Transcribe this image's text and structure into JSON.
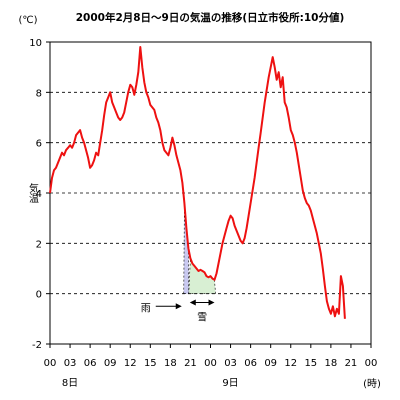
{
  "chart_data": {
    "type": "line",
    "title": "2000年2月8日～9日の気温の推移(日立市役所:10分値)",
    "ylabel": "気温",
    "yunit": "(℃)",
    "xunit": "(時)",
    "ylim": [
      -2,
      10
    ],
    "yticks": [
      "-2",
      "0",
      "2",
      "4",
      "6",
      "8",
      "10"
    ],
    "xticks": [
      "00",
      "03",
      "06",
      "09",
      "12",
      "15",
      "18",
      "21",
      "00",
      "03",
      "06",
      "09",
      "12",
      "15",
      "18",
      "21",
      "00"
    ],
    "day_labels": [
      {
        "label": "8日",
        "hour": 0
      },
      {
        "label": "9日",
        "hour": 24
      }
    ],
    "xlim": [
      0,
      48
    ],
    "grid": "horizontal dashed",
    "line_color": "#ee1111",
    "series": [
      {
        "points": [
          [
            0.0,
            4.0
          ],
          [
            0.3,
            4.6
          ],
          [
            0.6,
            4.9
          ],
          [
            0.9,
            5.0
          ],
          [
            1.2,
            5.2
          ],
          [
            1.5,
            5.4
          ],
          [
            1.8,
            5.6
          ],
          [
            2.1,
            5.5
          ],
          [
            2.4,
            5.7
          ],
          [
            2.7,
            5.8
          ],
          [
            3.0,
            5.9
          ],
          [
            3.3,
            5.8
          ],
          [
            3.6,
            6.0
          ],
          [
            3.9,
            6.3
          ],
          [
            4.2,
            6.4
          ],
          [
            4.5,
            6.5
          ],
          [
            4.8,
            6.2
          ],
          [
            5.1,
            6.0
          ],
          [
            5.4,
            5.7
          ],
          [
            5.7,
            5.4
          ],
          [
            6.0,
            5.0
          ],
          [
            6.3,
            5.1
          ],
          [
            6.6,
            5.3
          ],
          [
            6.9,
            5.6
          ],
          [
            7.2,
            5.5
          ],
          [
            7.5,
            6.0
          ],
          [
            7.8,
            6.5
          ],
          [
            8.1,
            7.1
          ],
          [
            8.4,
            7.6
          ],
          [
            8.7,
            7.8
          ],
          [
            9.0,
            8.0
          ],
          [
            9.3,
            7.6
          ],
          [
            9.6,
            7.4
          ],
          [
            9.9,
            7.2
          ],
          [
            10.2,
            7.0
          ],
          [
            10.5,
            6.9
          ],
          [
            10.8,
            7.0
          ],
          [
            11.1,
            7.2
          ],
          [
            11.4,
            7.6
          ],
          [
            11.7,
            8.0
          ],
          [
            12.0,
            8.3
          ],
          [
            12.3,
            8.2
          ],
          [
            12.6,
            7.9
          ],
          [
            12.9,
            8.3
          ],
          [
            13.2,
            8.8
          ],
          [
            13.5,
            9.8
          ],
          [
            13.8,
            9.0
          ],
          [
            14.1,
            8.4
          ],
          [
            14.4,
            8.0
          ],
          [
            14.7,
            7.8
          ],
          [
            15.0,
            7.5
          ],
          [
            15.3,
            7.4
          ],
          [
            15.6,
            7.3
          ],
          [
            15.9,
            7.0
          ],
          [
            16.2,
            6.8
          ],
          [
            16.5,
            6.5
          ],
          [
            16.8,
            6.0
          ],
          [
            17.1,
            5.7
          ],
          [
            17.4,
            5.6
          ],
          [
            17.7,
            5.5
          ],
          [
            18.0,
            5.8
          ],
          [
            18.3,
            6.2
          ],
          [
            18.6,
            5.9
          ],
          [
            18.9,
            5.5
          ],
          [
            19.2,
            5.2
          ],
          [
            19.5,
            4.9
          ],
          [
            19.8,
            4.4
          ],
          [
            20.1,
            3.6
          ],
          [
            20.4,
            2.6
          ],
          [
            20.7,
            1.8
          ],
          [
            21.0,
            1.4
          ],
          [
            21.3,
            1.2
          ],
          [
            21.6,
            1.1
          ],
          [
            21.9,
            1.0
          ],
          [
            22.2,
            0.9
          ],
          [
            22.5,
            0.95
          ],
          [
            22.8,
            0.9
          ],
          [
            23.1,
            0.85
          ],
          [
            23.4,
            0.7
          ],
          [
            23.7,
            0.65
          ],
          [
            24.0,
            0.7
          ],
          [
            24.3,
            0.6
          ],
          [
            24.6,
            0.55
          ],
          [
            24.9,
            0.8
          ],
          [
            25.2,
            1.2
          ],
          [
            25.5,
            1.6
          ],
          [
            25.8,
            2.0
          ],
          [
            26.1,
            2.3
          ],
          [
            26.4,
            2.6
          ],
          [
            26.7,
            2.9
          ],
          [
            27.0,
            3.1
          ],
          [
            27.3,
            3.0
          ],
          [
            27.6,
            2.7
          ],
          [
            27.9,
            2.5
          ],
          [
            28.2,
            2.3
          ],
          [
            28.5,
            2.1
          ],
          [
            28.8,
            2.0
          ],
          [
            29.1,
            2.2
          ],
          [
            29.4,
            2.6
          ],
          [
            29.7,
            3.1
          ],
          [
            30.0,
            3.6
          ],
          [
            30.3,
            4.1
          ],
          [
            30.6,
            4.6
          ],
          [
            30.9,
            5.2
          ],
          [
            31.2,
            5.8
          ],
          [
            31.5,
            6.4
          ],
          [
            31.8,
            7.0
          ],
          [
            32.1,
            7.6
          ],
          [
            32.4,
            8.1
          ],
          [
            32.7,
            8.6
          ],
          [
            33.0,
            9.0
          ],
          [
            33.3,
            9.4
          ],
          [
            33.6,
            9.0
          ],
          [
            33.9,
            8.5
          ],
          [
            34.2,
            8.8
          ],
          [
            34.5,
            8.2
          ],
          [
            34.8,
            8.6
          ],
          [
            35.1,
            7.6
          ],
          [
            35.4,
            7.4
          ],
          [
            35.7,
            7.0
          ],
          [
            36.0,
            6.5
          ],
          [
            36.3,
            6.3
          ],
          [
            36.6,
            6.0
          ],
          [
            36.9,
            5.6
          ],
          [
            37.2,
            5.1
          ],
          [
            37.5,
            4.6
          ],
          [
            37.8,
            4.1
          ],
          [
            38.1,
            3.8
          ],
          [
            38.4,
            3.6
          ],
          [
            38.7,
            3.5
          ],
          [
            39.0,
            3.3
          ],
          [
            39.3,
            3.0
          ],
          [
            39.6,
            2.7
          ],
          [
            39.9,
            2.4
          ],
          [
            40.2,
            2.0
          ],
          [
            40.5,
            1.6
          ],
          [
            40.8,
            1.0
          ],
          [
            41.1,
            0.3
          ],
          [
            41.4,
            -0.3
          ],
          [
            41.7,
            -0.6
          ],
          [
            42.0,
            -0.8
          ],
          [
            42.3,
            -0.5
          ],
          [
            42.6,
            -0.9
          ],
          [
            42.9,
            -0.6
          ],
          [
            43.2,
            -0.8
          ],
          [
            43.5,
            0.7
          ],
          [
            43.8,
            0.3
          ],
          [
            44.1,
            -1.0
          ]
        ]
      }
    ],
    "rain_band": {
      "from": 20.0,
      "to": 20.75,
      "color": "#c9c9f0",
      "label": "雨"
    },
    "snow_band": {
      "from": 20.75,
      "to": 24.75,
      "color": "#d8efd3",
      "label": "雪"
    }
  }
}
